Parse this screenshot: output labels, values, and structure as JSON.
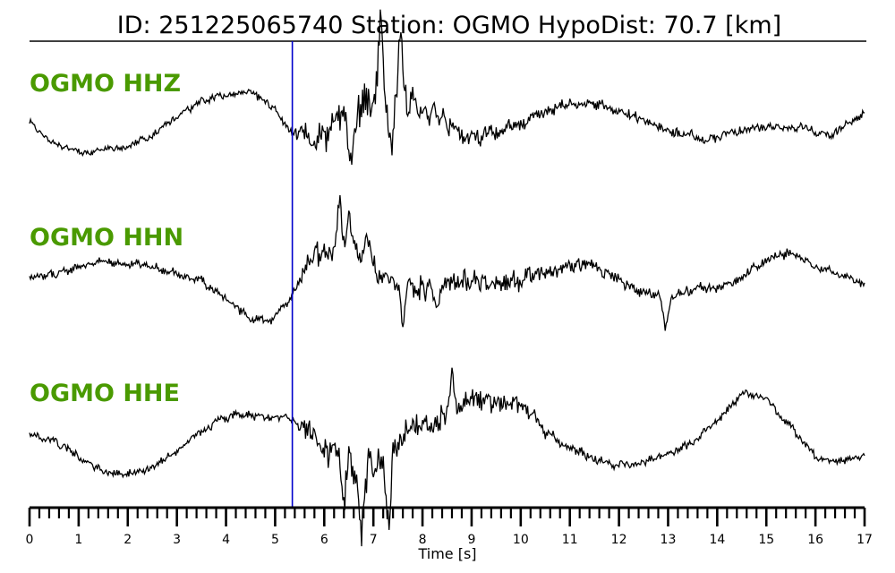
{
  "chart_data": {
    "type": "line",
    "title": "ID: 251225065740   Station: OGMO   HypoDist:    70.7 [km]",
    "xlabel": "Time [s]",
    "ylabel": "",
    "xlim": [
      0,
      17
    ],
    "x_ticks": [
      "0",
      "1",
      "2",
      "3",
      "4",
      "5",
      "6",
      "7",
      "8",
      "9",
      "10",
      "11",
      "12",
      "13",
      "14",
      "15",
      "16",
      "17"
    ],
    "minor_tick_step": 0.2,
    "pick_time": 5.35,
    "pick_color": "#0000cc",
    "label_color": "#4a9a00",
    "trace_color": "#000000",
    "grid": false,
    "legend": "none",
    "series": [
      {
        "name": "OGMO HHZ",
        "anchors": [
          [
            0.0,
            0.05
          ],
          [
            0.5,
            -0.35
          ],
          [
            1.0,
            -0.55
          ],
          [
            1.5,
            -0.5
          ],
          [
            2.0,
            -0.45
          ],
          [
            2.5,
            -0.2
          ],
          [
            3.0,
            0.2
          ],
          [
            3.5,
            0.5
          ],
          [
            4.0,
            0.65
          ],
          [
            4.5,
            0.7
          ],
          [
            5.0,
            0.3
          ],
          [
            5.35,
            -0.15
          ],
          [
            5.8,
            -0.3
          ],
          [
            6.3,
            0.1
          ],
          [
            6.8,
            0.3
          ],
          [
            7.3,
            0.6
          ],
          [
            7.8,
            0.4
          ],
          [
            8.3,
            0.1
          ],
          [
            8.8,
            -0.15
          ],
          [
            9.3,
            -0.2
          ],
          [
            9.8,
            -0.05
          ],
          [
            10.3,
            0.15
          ],
          [
            10.8,
            0.4
          ],
          [
            11.3,
            0.45
          ],
          [
            11.8,
            0.35
          ],
          [
            12.3,
            0.15
          ],
          [
            12.8,
            0.0
          ],
          [
            13.3,
            -0.2
          ],
          [
            13.8,
            -0.3
          ],
          [
            14.3,
            -0.15
          ],
          [
            14.8,
            -0.05
          ],
          [
            15.3,
            0.0
          ],
          [
            15.8,
            -0.05
          ],
          [
            16.3,
            -0.2
          ],
          [
            17.0,
            0.25
          ]
        ],
        "noise": [
          [
            0.0,
            0.08
          ],
          [
            5.3,
            0.12
          ],
          [
            5.5,
            0.3
          ],
          [
            7.0,
            0.55
          ],
          [
            7.8,
            0.45
          ],
          [
            8.5,
            0.32
          ],
          [
            9.5,
            0.22
          ],
          [
            11.0,
            0.14
          ],
          [
            13.0,
            0.14
          ],
          [
            17.0,
            0.1
          ]
        ],
        "spikes": [
          [
            7.15,
            1.55
          ],
          [
            7.55,
            1.55
          ],
          [
            6.55,
            -0.8
          ],
          [
            7.35,
            -0.8
          ]
        ]
      },
      {
        "name": "OGMO HHN",
        "anchors": [
          [
            0.0,
            0.05
          ],
          [
            0.5,
            0.1
          ],
          [
            1.0,
            0.25
          ],
          [
            1.5,
            0.35
          ],
          [
            2.0,
            0.3
          ],
          [
            2.5,
            0.25
          ],
          [
            3.0,
            0.1
          ],
          [
            3.5,
            -0.05
          ],
          [
            4.0,
            -0.4
          ],
          [
            4.5,
            -0.8
          ],
          [
            4.9,
            -0.85
          ],
          [
            5.35,
            -0.3
          ],
          [
            5.7,
            0.25
          ],
          [
            6.1,
            0.5
          ],
          [
            6.5,
            0.55
          ],
          [
            7.0,
            0.2
          ],
          [
            7.5,
            -0.05
          ],
          [
            8.0,
            -0.1
          ],
          [
            8.5,
            -0.05
          ],
          [
            9.0,
            -0.05
          ],
          [
            9.5,
            -0.05
          ],
          [
            10.0,
            -0.05
          ],
          [
            10.5,
            0.15
          ],
          [
            11.0,
            0.3
          ],
          [
            11.5,
            0.25
          ],
          [
            12.0,
            0.0
          ],
          [
            12.5,
            -0.25
          ],
          [
            13.0,
            -0.35
          ],
          [
            13.5,
            -0.2
          ],
          [
            14.0,
            -0.15
          ],
          [
            14.5,
            0.05
          ],
          [
            15.0,
            0.4
          ],
          [
            15.5,
            0.55
          ],
          [
            16.0,
            0.3
          ],
          [
            16.5,
            0.1
          ],
          [
            17.0,
            -0.1
          ]
        ],
        "noise": [
          [
            0.0,
            0.1
          ],
          [
            5.3,
            0.1
          ],
          [
            5.8,
            0.35
          ],
          [
            6.6,
            0.4
          ],
          [
            7.5,
            0.35
          ],
          [
            9.5,
            0.3
          ],
          [
            10.5,
            0.2
          ],
          [
            12.5,
            0.15
          ],
          [
            17.0,
            0.1
          ]
        ],
        "spikes": [
          [
            6.3,
            1.05
          ],
          [
            6.5,
            0.7
          ],
          [
            6.85,
            0.55
          ],
          [
            7.6,
            -0.7
          ],
          [
            8.3,
            -0.6
          ],
          [
            12.95,
            -0.65
          ]
        ]
      },
      {
        "name": "OGMO HHE",
        "anchors": [
          [
            0.0,
            0.0
          ],
          [
            0.5,
            -0.1
          ],
          [
            1.0,
            -0.45
          ],
          [
            1.5,
            -0.75
          ],
          [
            2.0,
            -0.8
          ],
          [
            2.5,
            -0.65
          ],
          [
            3.0,
            -0.3
          ],
          [
            3.5,
            0.1
          ],
          [
            4.0,
            0.35
          ],
          [
            4.5,
            0.45
          ],
          [
            5.0,
            0.35
          ],
          [
            5.35,
            0.3
          ],
          [
            5.7,
            0.0
          ],
          [
            6.0,
            -0.25
          ],
          [
            6.5,
            -0.45
          ],
          [
            7.0,
            -0.6
          ],
          [
            7.5,
            -0.2
          ],
          [
            8.0,
            0.2
          ],
          [
            8.5,
            0.5
          ],
          [
            9.0,
            0.7
          ],
          [
            9.5,
            0.78
          ],
          [
            10.0,
            0.6
          ],
          [
            10.5,
            0.1
          ],
          [
            11.0,
            -0.25
          ],
          [
            11.5,
            -0.5
          ],
          [
            12.0,
            -0.6
          ],
          [
            12.5,
            -0.55
          ],
          [
            13.0,
            -0.4
          ],
          [
            13.5,
            -0.15
          ],
          [
            14.0,
            0.3
          ],
          [
            14.5,
            0.85
          ],
          [
            15.0,
            0.75
          ],
          [
            15.5,
            0.2
          ],
          [
            16.0,
            -0.45
          ],
          [
            16.5,
            -0.55
          ],
          [
            17.0,
            -0.4
          ]
        ],
        "noise": [
          [
            0.0,
            0.1
          ],
          [
            5.3,
            0.12
          ],
          [
            5.6,
            0.3
          ],
          [
            6.5,
            0.45
          ],
          [
            7.5,
            0.45
          ],
          [
            8.5,
            0.35
          ],
          [
            9.5,
            0.3
          ],
          [
            10.5,
            0.18
          ],
          [
            12.0,
            0.12
          ],
          [
            17.0,
            0.1
          ]
        ],
        "spikes": [
          [
            6.75,
            -1.35
          ],
          [
            7.3,
            -1.3
          ],
          [
            6.4,
            -0.95
          ],
          [
            8.6,
            0.7
          ]
        ]
      }
    ]
  }
}
